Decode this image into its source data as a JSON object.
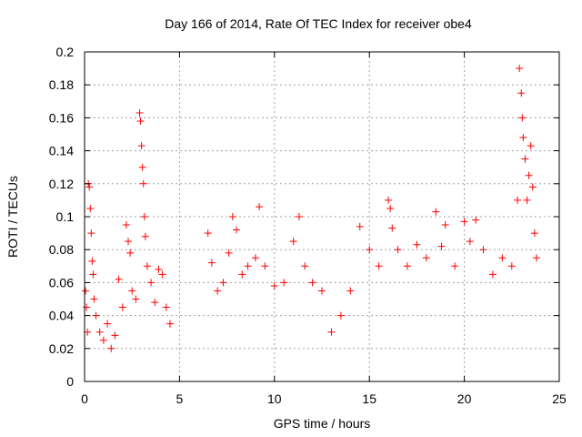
{
  "chart_data": {
    "type": "scatter",
    "title": "Day 166 of 2014, Rate Of TEC Index for receiver obe4",
    "xlabel": "GPS time / hours",
    "ylabel": "ROTI / TECUs",
    "xlim": [
      0,
      25
    ],
    "ylim": [
      0,
      0.2
    ],
    "x_ticks": [
      0,
      5,
      10,
      15,
      20,
      25
    ],
    "y_ticks": [
      0,
      0.02,
      0.04,
      0.06,
      0.08,
      0.1,
      0.12,
      0.14,
      0.16,
      0.18,
      0.2
    ],
    "x_tick_labels": [
      "0",
      "5",
      "10",
      "15",
      "20",
      "25"
    ],
    "y_tick_labels": [
      "0",
      "0.02",
      "0.04",
      "0.06",
      "0.08",
      "0.1",
      "0.12",
      "0.14",
      "0.16",
      "0.18",
      "0.2"
    ],
    "grid": true,
    "marker": "+",
    "color": "#ff0000",
    "series": [
      {
        "values": [
          [
            0.05,
            0.055
          ],
          [
            0.1,
            0.045
          ],
          [
            0.15,
            0.03
          ],
          [
            0.2,
            0.12
          ],
          [
            0.25,
            0.118
          ],
          [
            0.3,
            0.105
          ],
          [
            0.35,
            0.09
          ],
          [
            0.4,
            0.073
          ],
          [
            0.45,
            0.065
          ],
          [
            0.5,
            0.05
          ],
          [
            0.6,
            0.04
          ],
          [
            0.8,
            0.03
          ],
          [
            1.0,
            0.025
          ],
          [
            1.2,
            0.035
          ],
          [
            1.4,
            0.02
          ],
          [
            1.6,
            0.028
          ],
          [
            1.8,
            0.062
          ],
          [
            2.0,
            0.045
          ],
          [
            2.2,
            0.095
          ],
          [
            2.3,
            0.085
          ],
          [
            2.4,
            0.078
          ],
          [
            2.5,
            0.055
          ],
          [
            2.7,
            0.05
          ],
          [
            2.9,
            0.163
          ],
          [
            2.95,
            0.158
          ],
          [
            3.0,
            0.143
          ],
          [
            3.05,
            0.13
          ],
          [
            3.1,
            0.12
          ],
          [
            3.15,
            0.1
          ],
          [
            3.2,
            0.088
          ],
          [
            3.3,
            0.07
          ],
          [
            3.5,
            0.06
          ],
          [
            3.7,
            0.048
          ],
          [
            3.9,
            0.068
          ],
          [
            4.1,
            0.065
          ],
          [
            4.3,
            0.045
          ],
          [
            4.5,
            0.035
          ],
          [
            6.5,
            0.09
          ],
          [
            6.7,
            0.072
          ],
          [
            7.0,
            0.055
          ],
          [
            7.3,
            0.06
          ],
          [
            7.6,
            0.078
          ],
          [
            7.8,
            0.1
          ],
          [
            8.0,
            0.092
          ],
          [
            8.3,
            0.065
          ],
          [
            8.6,
            0.07
          ],
          [
            9.0,
            0.075
          ],
          [
            9.2,
            0.106
          ],
          [
            9.5,
            0.07
          ],
          [
            10.0,
            0.058
          ],
          [
            10.5,
            0.06
          ],
          [
            11.0,
            0.085
          ],
          [
            11.3,
            0.1
          ],
          [
            11.6,
            0.07
          ],
          [
            12.0,
            0.06
          ],
          [
            12.5,
            0.055
          ],
          [
            13.0,
            0.03
          ],
          [
            13.5,
            0.04
          ],
          [
            14.0,
            0.055
          ],
          [
            14.5,
            0.094
          ],
          [
            15.0,
            0.08
          ],
          [
            15.5,
            0.07
          ],
          [
            16.0,
            0.11
          ],
          [
            16.1,
            0.105
          ],
          [
            16.2,
            0.093
          ],
          [
            16.5,
            0.08
          ],
          [
            17.0,
            0.07
          ],
          [
            17.5,
            0.083
          ],
          [
            18.0,
            0.075
          ],
          [
            18.5,
            0.103
          ],
          [
            18.8,
            0.082
          ],
          [
            19.0,
            0.095
          ],
          [
            19.5,
            0.07
          ],
          [
            20.0,
            0.097
          ],
          [
            20.3,
            0.085
          ],
          [
            20.6,
            0.098
          ],
          [
            21.0,
            0.08
          ],
          [
            21.5,
            0.065
          ],
          [
            22.0,
            0.075
          ],
          [
            22.5,
            0.07
          ],
          [
            22.8,
            0.11
          ],
          [
            22.9,
            0.19
          ],
          [
            23.0,
            0.175
          ],
          [
            23.05,
            0.16
          ],
          [
            23.1,
            0.148
          ],
          [
            23.2,
            0.135
          ],
          [
            23.3,
            0.11
          ],
          [
            23.4,
            0.125
          ],
          [
            23.5,
            0.143
          ],
          [
            23.6,
            0.118
          ],
          [
            23.7,
            0.09
          ],
          [
            23.8,
            0.075
          ]
        ]
      }
    ]
  }
}
